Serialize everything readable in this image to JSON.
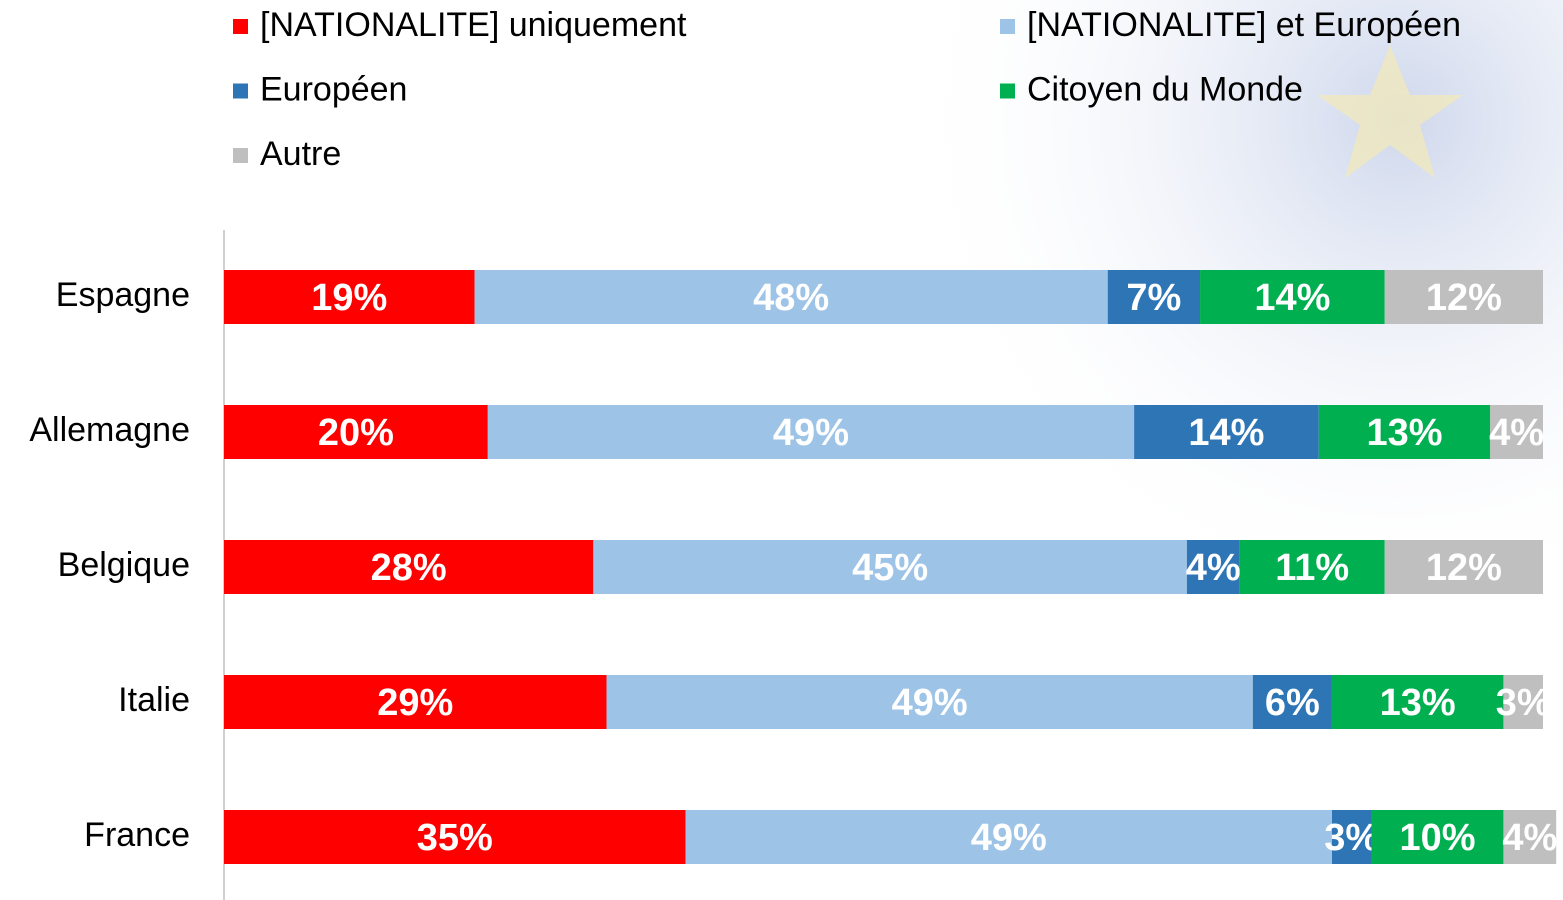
{
  "chart_data": {
    "type": "stacked_bar_horizontal",
    "categories": [
      "Espagne",
      "Allemagne",
      "Belgique",
      "Italie",
      "France"
    ],
    "series": [
      {
        "name": "[NATIONALITE] uniquement",
        "color": "#ff0000",
        "values": [
          19,
          20,
          28,
          29,
          35
        ],
        "value_labels": [
          "19%",
          "20%",
          "28%",
          "29%",
          "35%"
        ]
      },
      {
        "name": "[NATIONALITE] et Européen",
        "color": "#9dc3e6",
        "values": [
          48,
          49,
          45,
          49,
          49
        ],
        "value_labels": [
          "48%",
          "49%",
          "45%",
          "49%",
          "49%"
        ]
      },
      {
        "name": "Européen",
        "color": "#2e75b6",
        "values": [
          7,
          14,
          4,
          6,
          3
        ],
        "value_labels": [
          "7%",
          "14%",
          "4%",
          "6%",
          "3%"
        ]
      },
      {
        "name": "Citoyen du Monde",
        "color": "#00b050",
        "values": [
          14,
          13,
          11,
          13,
          10
        ],
        "value_labels": [
          "14%",
          "13%",
          "11%",
          "13%",
          "10%"
        ]
      },
      {
        "name": "Autre",
        "color": "#bfbfbf",
        "values": [
          12,
          4,
          12,
          3,
          4
        ],
        "value_labels": [
          "12%",
          "4%",
          "12%",
          "3%",
          "4%"
        ]
      }
    ],
    "xlim": [
      0,
      100
    ]
  }
}
